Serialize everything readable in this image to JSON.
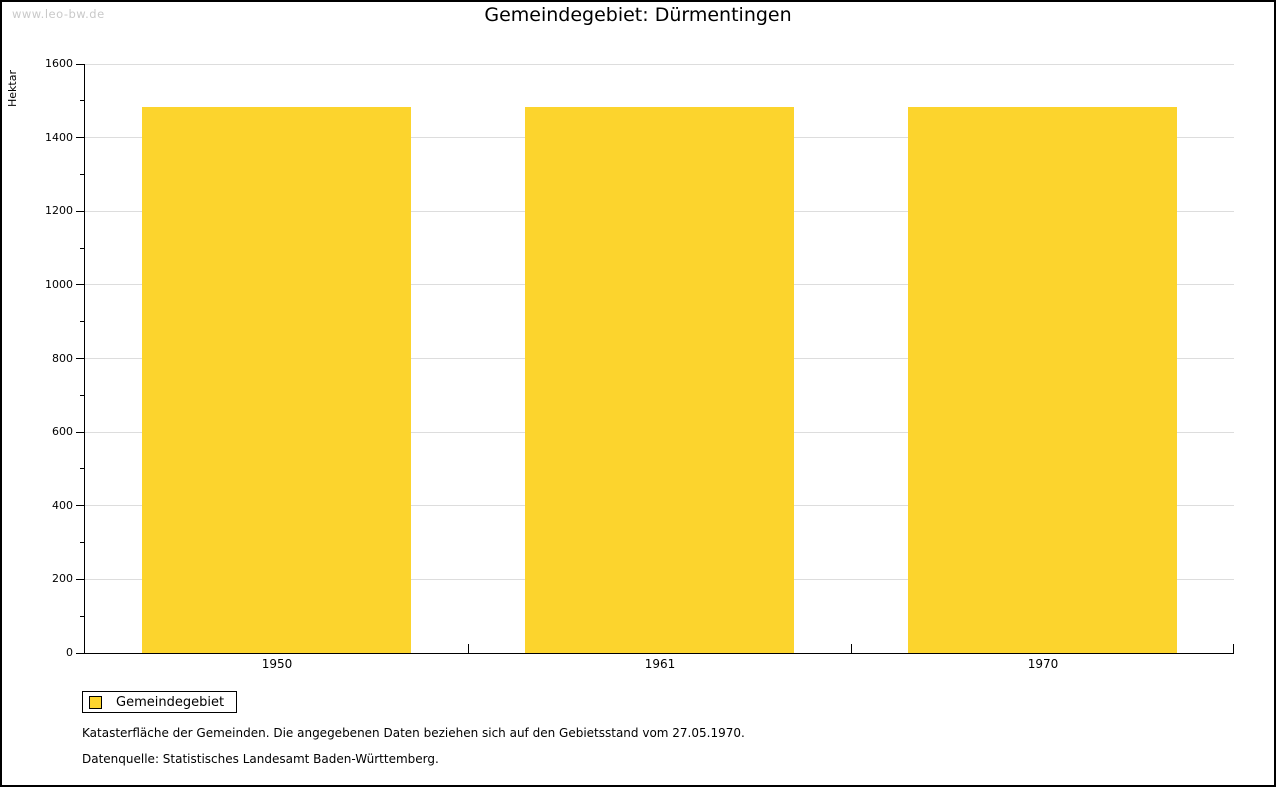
{
  "watermark": "www.leo-bw.de",
  "title": "Gemeindegebiet: Dürmentingen",
  "legend": {
    "label": "Gemeindegebiet"
  },
  "footnotes": {
    "line1": "Katasterfläche der Gemeinden. Die angegebenen Daten beziehen sich auf den Gebietsstand vom 27.05.1970.",
    "line2": "Datenquelle: Statistisches Landesamt Baden-Württemberg."
  },
  "colors": {
    "bar": "#fcd42d",
    "grid": "#dddddd",
    "axis": "#000000",
    "watermark": "#c9c9c9",
    "frame_shadow": "#6f6f6f"
  },
  "chart_data": {
    "type": "bar",
    "title": "Gemeindegebiet: Dürmentingen",
    "categories": [
      "1950",
      "1961",
      "1970"
    ],
    "values": [
      1483,
      1483,
      1483
    ],
    "series_name": "Gemeindegebiet",
    "xlabel": "",
    "ylabel": "Hektar",
    "ylim": [
      0,
      1600
    ],
    "y_major_step": 200,
    "y_minor_step": 100,
    "y_tick_labels": [
      "0",
      "200",
      "400",
      "600",
      "800",
      "1000",
      "1200",
      "1400",
      "1600"
    ],
    "grid": "horizontal-major",
    "legend_position": "bottom-left-below-plot",
    "bar_color": "#fcd42d"
  }
}
